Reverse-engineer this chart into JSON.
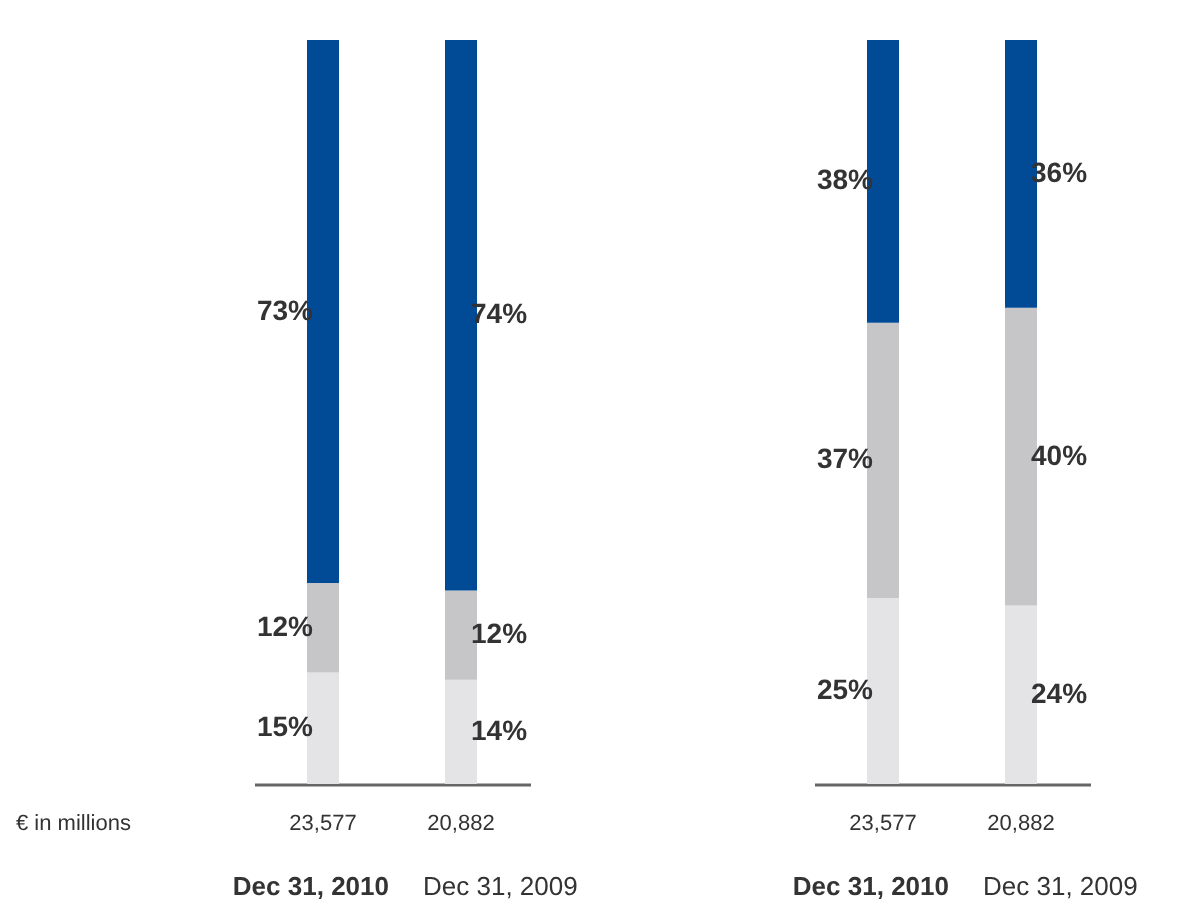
{
  "chart_data": [
    {
      "type": "bar",
      "stacked": true,
      "categories": [
        "Dec 31, 2010",
        "Dec 31, 2009"
      ],
      "annotations": [
        "€ in millions",
        "23,577",
        "20,882"
      ],
      "series": [
        {
          "color": "#e4e4e6",
          "values": [
            15,
            14
          ],
          "value_labels": [
            "15%",
            "14%"
          ]
        },
        {
          "color": "#c6c6c8",
          "values": [
            12,
            12
          ],
          "value_labels": [
            "12%",
            "12%"
          ]
        },
        {
          "color": "#004a96",
          "values": [
            73,
            74
          ],
          "value_labels": [
            "73%",
            "74%"
          ]
        }
      ]
    },
    {
      "type": "bar",
      "stacked": true,
      "categories": [
        "Dec 31, 2010",
        "Dec 31, 2009"
      ],
      "annotations": [
        "23,577",
        "20,882"
      ],
      "series": [
        {
          "color": "#e4e4e6",
          "values": [
            25,
            24
          ],
          "value_labels": [
            "25%",
            "24%"
          ]
        },
        {
          "color": "#c6c6c8",
          "values": [
            37,
            40
          ],
          "value_labels": [
            "37%",
            "40%"
          ]
        },
        {
          "color": "#004a96",
          "values": [
            38,
            36
          ],
          "value_labels": [
            "38%",
            "36%"
          ]
        }
      ]
    }
  ]
}
